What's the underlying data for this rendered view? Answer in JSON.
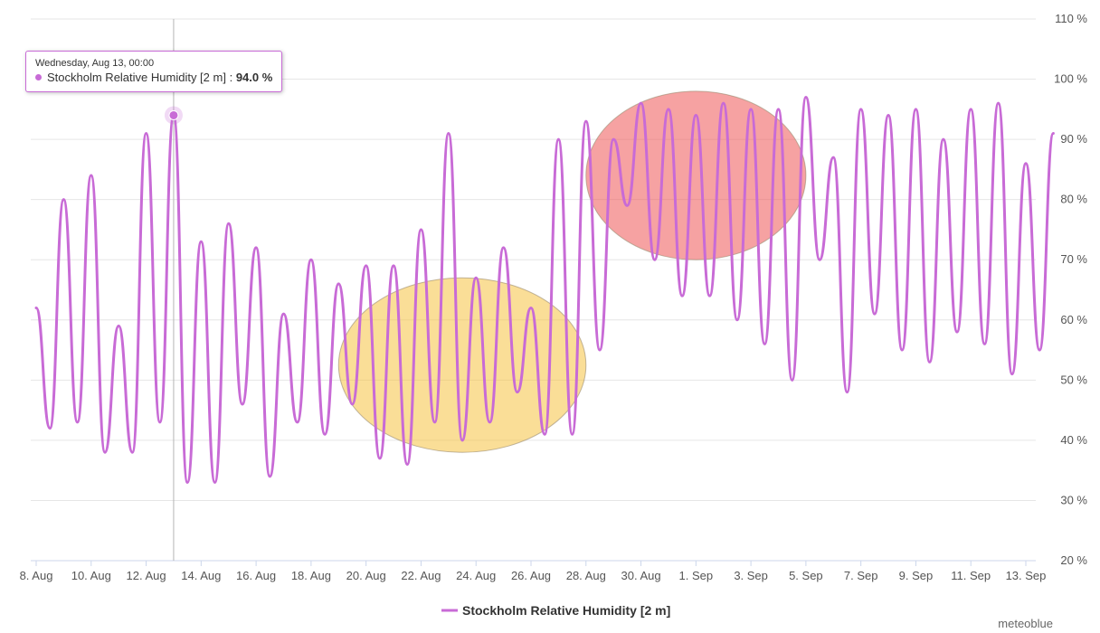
{
  "chart_data": {
    "type": "line",
    "title": "",
    "xlabel": "",
    "ylabel": "",
    "ylim": [
      20,
      110
    ],
    "yticks": [
      20,
      30,
      40,
      50,
      60,
      70,
      80,
      90,
      100,
      110
    ],
    "ytick_labels": [
      "20 %",
      "30 %",
      "40 %",
      "50 %",
      "60 %",
      "70 %",
      "80 %",
      "90 %",
      "100 %",
      "110 %"
    ],
    "xtick_labels": [
      "8. Aug",
      "10. Aug",
      "12. Aug",
      "14. Aug",
      "16. Aug",
      "18. Aug",
      "20. Aug",
      "22. Aug",
      "24. Aug",
      "26. Aug",
      "28. Aug",
      "30. Aug",
      "1. Sep",
      "3. Sep",
      "5. Sep",
      "7. Sep",
      "9. Sep",
      "11. Sep",
      "13. Sep"
    ],
    "x_start": "2025-08-08",
    "x_end": "2025-09-14",
    "grid": true,
    "legend": "bottom-center",
    "series": [
      {
        "name": "Stockholm Relative Humidity [2 m]",
        "color": "#c86bd6",
        "x": [
          "8. Aug",
          "8. Aug",
          "9. Aug",
          "9. Aug",
          "10. Aug",
          "10. Aug",
          "11. Aug",
          "11. Aug",
          "12. Aug",
          "12. Aug",
          "13. Aug",
          "13. Aug",
          "14. Aug",
          "14. Aug",
          "15. Aug",
          "15. Aug",
          "16. Aug",
          "16. Aug",
          "17. Aug",
          "17. Aug",
          "18. Aug",
          "18. Aug",
          "19. Aug",
          "19. Aug",
          "20. Aug",
          "20. Aug",
          "21. Aug",
          "21. Aug",
          "22. Aug",
          "22. Aug",
          "23. Aug",
          "23. Aug",
          "24. Aug",
          "24. Aug",
          "25. Aug",
          "25. Aug",
          "26. Aug",
          "26. Aug",
          "27. Aug",
          "27. Aug",
          "28. Aug",
          "28. Aug",
          "29. Aug",
          "29. Aug",
          "30. Aug",
          "30. Aug",
          "31. Aug",
          "31. Aug",
          "1. Sep",
          "1. Sep",
          "2. Sep",
          "2. Sep",
          "3. Sep",
          "3. Sep",
          "4. Sep",
          "4. Sep",
          "5. Sep",
          "5. Sep",
          "6. Sep",
          "6. Sep",
          "7. Sep",
          "7. Sep",
          "8. Sep",
          "8. Sep",
          "9. Sep",
          "9. Sep",
          "10. Sep",
          "10. Sep",
          "11. Sep",
          "11. Sep",
          "12. Sep",
          "12. Sep",
          "13. Sep",
          "13. Sep",
          "14. Sep"
        ],
        "values": [
          62,
          42,
          80,
          43,
          84,
          38,
          59,
          38,
          91,
          43,
          94,
          33,
          73,
          33,
          76,
          46,
          72,
          34,
          61,
          43,
          70,
          41,
          66,
          46,
          69,
          37,
          69,
          36,
          75,
          43,
          91,
          40,
          67,
          43,
          72,
          48,
          62,
          41,
          90,
          41,
          93,
          55,
          90,
          79,
          96,
          70,
          95,
          64,
          94,
          64,
          96,
          60,
          95,
          56,
          95,
          50,
          97,
          70,
          87,
          48,
          95,
          61,
          94,
          55,
          95,
          53,
          90,
          58,
          95,
          56,
          96,
          51,
          86,
          55,
          91
        ]
      }
    ],
    "annotations": [
      {
        "type": "ellipse",
        "color": "#f5c242",
        "x_from": "19. Aug",
        "x_to": "28. Aug",
        "y_from": 38,
        "y_to": 67
      },
      {
        "type": "ellipse",
        "color": "#ee5555",
        "x_from": "28. Aug",
        "x_to": "5. Sep",
        "y_from": 70,
        "y_to": 98
      }
    ]
  },
  "tooltip": {
    "date": "Wednesday, Aug 13, 00:00",
    "series": "Stockholm Relative Humidity [2 m]",
    "separator": ":",
    "value": "94.0 %"
  },
  "legend": {
    "label": "Stockholm Relative Humidity [2 m]"
  },
  "credit": "meteoblue"
}
